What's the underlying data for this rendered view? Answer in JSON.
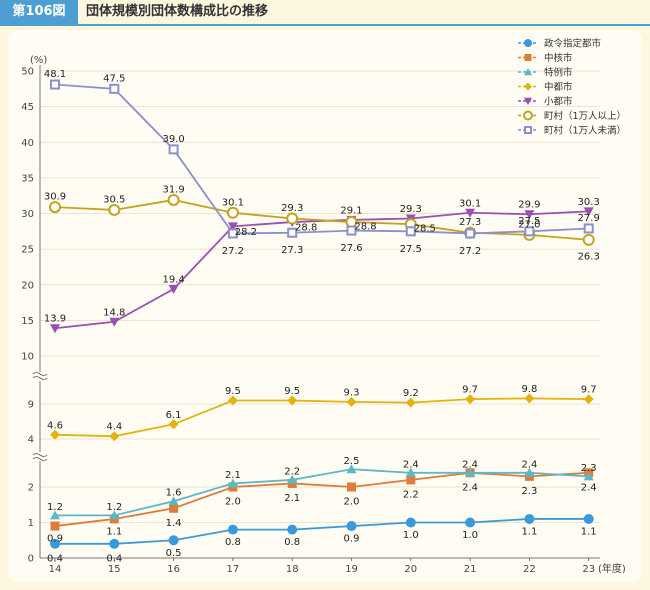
{
  "header": {
    "badge": "第106図",
    "title": "団体規模別団体数構成比の推移"
  },
  "chart_data": {
    "type": "line",
    "title": "団体規模別団体数構成比の推移",
    "ylabel": "(%)",
    "xlabel": "(年度)",
    "categories": [
      "14",
      "15",
      "16",
      "17",
      "18",
      "19",
      "20",
      "21",
      "22",
      "23"
    ],
    "axis_breaks": true,
    "upper_ticks": [
      "10",
      "15",
      "20",
      "25",
      "30",
      "35",
      "40",
      "45",
      "50"
    ],
    "middle_ticks": [
      "4",
      "9"
    ],
    "lower_ticks": [
      "0",
      "1",
      "2"
    ],
    "series": [
      {
        "name": "政令指定都市",
        "color": "#3a9ad9",
        "marker": "circle-filled",
        "panel": "lower",
        "values": [
          0.4,
          0.4,
          0.5,
          0.8,
          0.8,
          0.9,
          1.0,
          1.0,
          1.1,
          1.1
        ],
        "labels": [
          "0.4",
          "0.4",
          "0.5",
          "0.8",
          "0.8",
          "0.9",
          "1.0",
          "1.0",
          "1.1",
          "1.1"
        ]
      },
      {
        "name": "中核市",
        "color": "#e07b39",
        "marker": "square-filled",
        "panel": "lower",
        "values": [
          0.9,
          1.1,
          1.4,
          2.0,
          2.1,
          2.0,
          2.2,
          2.4,
          2.3,
          2.4
        ],
        "labels": [
          "0.9",
          "1.1",
          "1.4",
          "2.0",
          "2.1",
          "2.0",
          "2.2",
          "2.4",
          "2.3",
          "2.4"
        ]
      },
      {
        "name": "特例市",
        "color": "#5bb8c6",
        "marker": "triangle-up",
        "panel": "lower",
        "values": [
          1.2,
          1.2,
          1.6,
          2.1,
          2.2,
          2.5,
          2.4,
          2.4,
          2.4,
          2.3
        ],
        "labels": [
          "1.2",
          "1.2",
          "1.6",
          "2.1",
          "2.2",
          "2.5",
          "2.4",
          "2.4",
          "2.4",
          "2.3"
        ]
      },
      {
        "name": "中都市",
        "color": "#e3b20f",
        "marker": "diamond-filled",
        "panel": "middle",
        "values": [
          4.6,
          4.4,
          6.1,
          9.5,
          9.5,
          9.3,
          9.2,
          9.7,
          9.8,
          9.7
        ],
        "labels": [
          "4.6",
          "4.4",
          "6.1",
          "9.5",
          "9.5",
          "9.3",
          "9.2",
          "9.7",
          "9.8",
          "9.7"
        ]
      },
      {
        "name": "小都市",
        "color": "#9b4fb0",
        "marker": "triangle-down",
        "panel": "upper",
        "values": [
          13.9,
          14.8,
          19.4,
          28.2,
          28.8,
          29.1,
          29.3,
          30.1,
          29.9,
          30.3
        ],
        "labels": [
          "13.9",
          "14.8",
          "19.4",
          "28.2",
          "28.8",
          "29.1",
          "29.3",
          "30.1",
          "29.9",
          "30.3"
        ]
      },
      {
        "name": "町村（1万人以上）",
        "color": "#c6a21c",
        "marker": "circle-open",
        "panel": "upper",
        "values": [
          30.9,
          30.5,
          31.9,
          30.1,
          29.3,
          28.8,
          28.5,
          27.3,
          27.0,
          26.3
        ],
        "labels": [
          "30.9",
          "30.5",
          "31.9",
          "30.1",
          "29.3",
          "28.8",
          "28.5",
          "27.3",
          "27.0",
          "26.3"
        ]
      },
      {
        "name": "町村（1万人未満）",
        "color": "#8a8fd0",
        "marker": "square-open",
        "panel": "upper",
        "values": [
          48.1,
          47.5,
          39.0,
          27.2,
          27.3,
          27.6,
          27.5,
          27.2,
          27.5,
          27.9
        ],
        "labels": [
          "48.1",
          "47.5",
          "39.0",
          "27.2",
          "27.3",
          "27.6",
          "27.5",
          "27.2",
          "27.5",
          "27.9"
        ]
      }
    ]
  }
}
